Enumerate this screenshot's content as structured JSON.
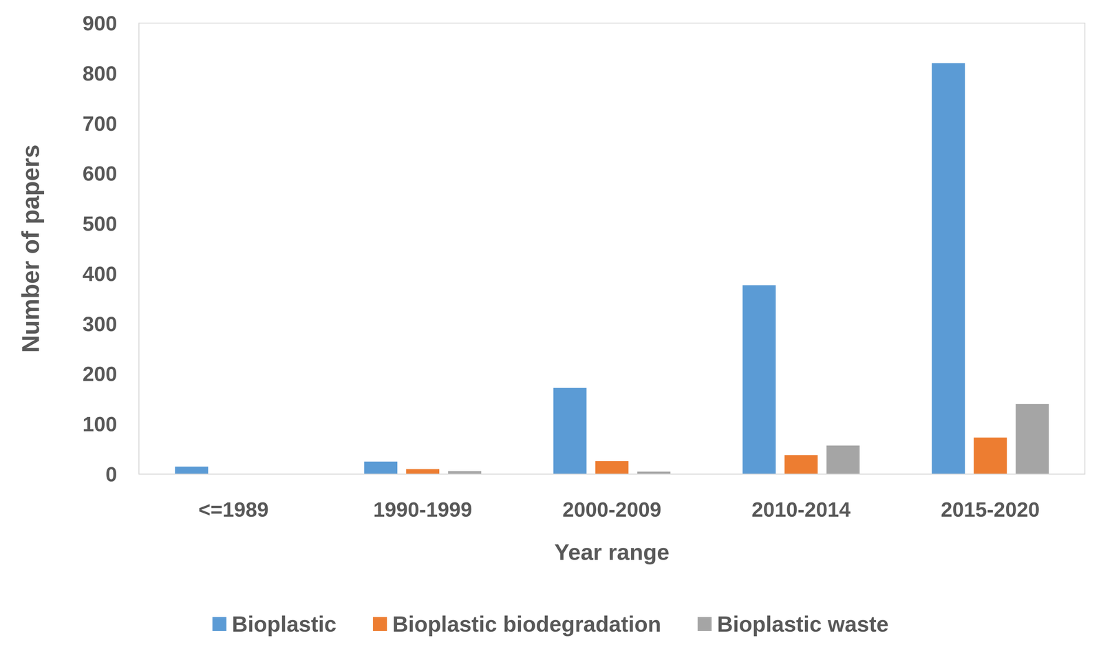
{
  "chart_data": {
    "type": "bar",
    "x_label": "Year range",
    "y_label": "Number of papers",
    "categories": [
      "<=1989",
      "1990-1999",
      "2000-2009",
      "2010-2014",
      "2015-2020"
    ],
    "series": [
      {
        "name": "Bioplastic",
        "color": "#5b9bd5",
        "values": [
          15,
          25,
          172,
          377,
          820
        ]
      },
      {
        "name": "Bioplastic biodegradation",
        "color": "#ed7d31",
        "values": [
          0,
          10,
          26,
          38,
          73
        ]
      },
      {
        "name": "Bioplastic waste",
        "color": "#a5a5a5",
        "values": [
          0,
          6,
          5,
          57,
          140
        ]
      }
    ],
    "ylim": [
      0,
      900
    ],
    "yticks": [
      0,
      100,
      200,
      300,
      400,
      500,
      600,
      700,
      800,
      900
    ],
    "grid": false,
    "legend": "bottom"
  }
}
